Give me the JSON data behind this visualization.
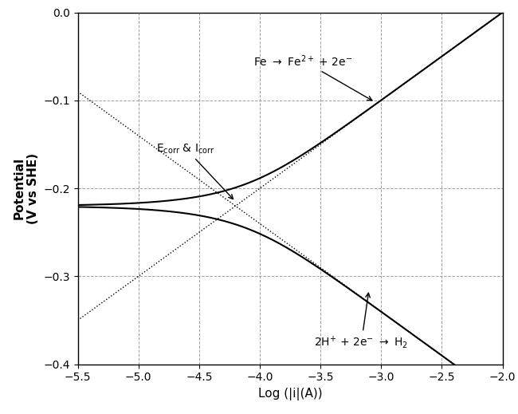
{
  "x_min": -5.5,
  "x_max": -2.0,
  "y_min": -0.4,
  "y_max": 0.0,
  "E_corr": -0.22,
  "log_i_corr": -4.2,
  "beta_a": 0.1,
  "beta_c": 0.1,
  "xlabel": "Log (|i|(A))",
  "ylabel_line1": "Potential",
  "ylabel_line2": "(V vs SHE)",
  "xticks": [
    -5.5,
    -5.0,
    -4.5,
    -4.0,
    -3.5,
    -3.0,
    -2.5,
    -2.0
  ],
  "yticks": [
    0.0,
    -0.1,
    -0.2,
    -0.3,
    -0.4
  ],
  "grid_color": "#999999",
  "line_color": "#000000",
  "background_color": "#ffffff",
  "figsize": [
    6.5,
    5.19
  ],
  "dpi": 100
}
